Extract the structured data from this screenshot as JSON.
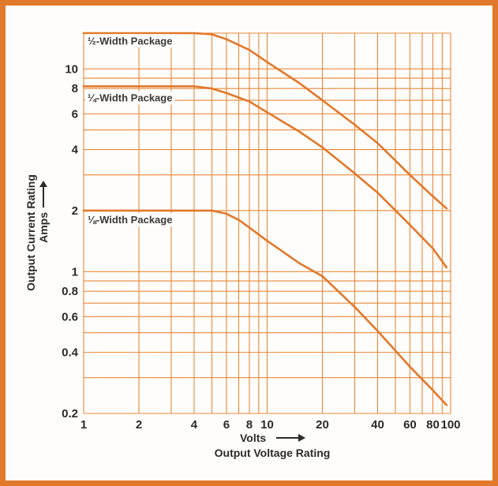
{
  "colors": {
    "frame": "#e2782a",
    "grid": "#e9883a",
    "curve": "#e2782a",
    "text": "#2b2b2b"
  },
  "chart_data": {
    "type": "line",
    "x_scale": "log",
    "y_scale": "log",
    "xlim": [
      1,
      100
    ],
    "ylim": [
      0.2,
      15
    ],
    "xlabel": "Volts",
    "xlabel2": "Output Voltage Rating",
    "ylabel": "Output Current Rating",
    "ylabel2": "Amps",
    "x_ticks": [
      1,
      2,
      4,
      6,
      8,
      10,
      20,
      40,
      60,
      80,
      100
    ],
    "y_ticks": [
      0.2,
      0.4,
      0.6,
      0.8,
      1,
      2,
      4,
      6,
      8,
      10
    ],
    "grid": true,
    "series": [
      {
        "name": "½-Width Package",
        "label_at": [
          1.05,
          13.2
        ],
        "x": [
          1,
          4,
          5,
          6,
          8,
          10,
          15,
          20,
          30,
          40,
          60,
          80,
          95
        ],
        "y": [
          15,
          15,
          14.8,
          14,
          12.4,
          10.8,
          8.5,
          7.0,
          5.3,
          4.3,
          3.0,
          2.35,
          2.05
        ]
      },
      {
        "name": "¼-Width Package",
        "label_at": [
          1.05,
          6.9
        ],
        "x": [
          1,
          4,
          5,
          6,
          8,
          10,
          15,
          20,
          30,
          40,
          60,
          80,
          95
        ],
        "y": [
          8.2,
          8.2,
          8.0,
          7.6,
          6.9,
          6.1,
          4.9,
          4.1,
          3.05,
          2.45,
          1.7,
          1.3,
          1.05
        ]
      },
      {
        "name": "⅛-Width Package",
        "label_at": [
          1.05,
          1.73
        ],
        "x": [
          1,
          5,
          6,
          7,
          8,
          10,
          15,
          20,
          30,
          40,
          60,
          80,
          95
        ],
        "y": [
          2.0,
          2.0,
          1.93,
          1.8,
          1.65,
          1.42,
          1.1,
          0.95,
          0.67,
          0.51,
          0.34,
          0.26,
          0.22
        ]
      }
    ]
  }
}
